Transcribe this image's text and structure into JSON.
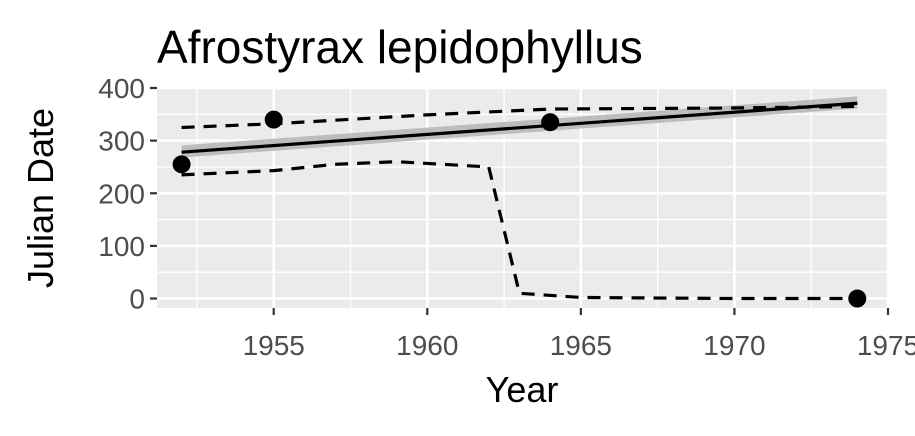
{
  "chart_data": {
    "type": "scatter",
    "title": "Afrostyrax lepidophyllus",
    "xlabel": "Year",
    "ylabel": "Julian Date",
    "xlim": [
      1951.2,
      1975.0
    ],
    "ylim": [
      -18,
      400
    ],
    "x_ticks": [
      1955,
      1960,
      1965,
      1970,
      1975
    ],
    "x_tick_labels": [
      "1955",
      "1960",
      "1965",
      "1970",
      "1975"
    ],
    "y_ticks": [
      0,
      100,
      200,
      300,
      400
    ],
    "y_tick_labels": [
      "0",
      "100",
      "200",
      "300",
      "400"
    ],
    "grid": true,
    "legend": "none",
    "points": [
      {
        "x": 1952,
        "y": 255
      },
      {
        "x": 1955,
        "y": 340
      },
      {
        "x": 1964,
        "y": 335
      },
      {
        "x": 1974,
        "y": 0
      }
    ],
    "fit_line": {
      "x": [
        1952,
        1974
      ],
      "y": [
        278,
        371
      ]
    },
    "fit_band": {
      "x": [
        1952,
        1974
      ],
      "lower": [
        268,
        361
      ],
      "upper": [
        291,
        384
      ]
    },
    "upper_dashed": {
      "x": [
        1952,
        1955,
        1960,
        1964,
        1970,
        1974
      ],
      "y": [
        325,
        332,
        349,
        360,
        362,
        365
      ]
    },
    "lower_dashed": {
      "x": [
        1952,
        1955,
        1957,
        1959,
        1962,
        1963,
        1965,
        1970,
        1974
      ],
      "y": [
        235,
        243,
        255,
        260,
        250,
        10,
        2,
        0,
        0
      ]
    },
    "colors": {
      "panel": "#ebebeb",
      "grid_major": "#ffffff",
      "band": "#bdbdbd",
      "line": "#000000"
    }
  }
}
